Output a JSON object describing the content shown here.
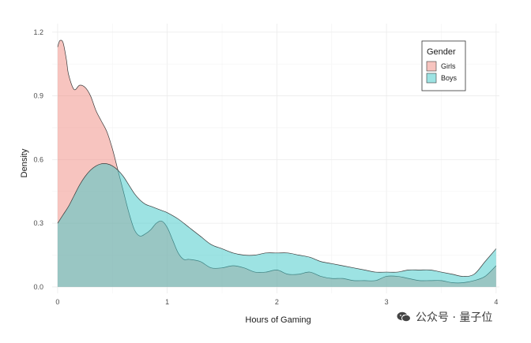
{
  "chart_data": {
    "type": "area",
    "xlabel": "Hours of Gaming",
    "ylabel": "Density",
    "xlim": [
      -0.05,
      4.03
    ],
    "ylim": [
      -0.03,
      1.24
    ],
    "x_ticks": [
      {
        "value": 0,
        "label": "0"
      },
      {
        "value": 1,
        "label": "1"
      },
      {
        "value": 2,
        "label": "2"
      },
      {
        "value": 3,
        "label": "3"
      },
      {
        "value": 4,
        "label": "4"
      }
    ],
    "y_ticks": [
      {
        "value": 0.0,
        "label": "0.0"
      },
      {
        "value": 0.3,
        "label": "0.3"
      },
      {
        "value": 0.6,
        "label": "0.6"
      },
      {
        "value": 0.9,
        "label": "0.9"
      },
      {
        "value": 1.2,
        "label": "1.2"
      }
    ],
    "grid": true,
    "legend": {
      "title": "Gender",
      "position": "top-right"
    },
    "series": [
      {
        "name": "Girls",
        "color": "#F08A80",
        "x": [
          0,
          0.02,
          0.05,
          0.08,
          0.1,
          0.15,
          0.2,
          0.25,
          0.3,
          0.35,
          0.4,
          0.45,
          0.5,
          0.55,
          0.6,
          0.65,
          0.7,
          0.75,
          0.8,
          0.85,
          0.9,
          0.95,
          1.0,
          1.05,
          1.1,
          1.15,
          1.2,
          1.3,
          1.4,
          1.5,
          1.6,
          1.7,
          1.8,
          1.9,
          2.0,
          2.1,
          2.2,
          2.3,
          2.4,
          2.5,
          2.6,
          2.7,
          2.8,
          2.9,
          3.0,
          3.1,
          3.2,
          3.3,
          3.4,
          3.5,
          3.6,
          3.7,
          3.8,
          3.9,
          4.0
        ],
        "y": [
          1.13,
          1.16,
          1.15,
          1.07,
          1.0,
          0.93,
          0.95,
          0.94,
          0.9,
          0.83,
          0.78,
          0.73,
          0.65,
          0.55,
          0.45,
          0.35,
          0.27,
          0.24,
          0.25,
          0.27,
          0.3,
          0.31,
          0.28,
          0.22,
          0.16,
          0.13,
          0.13,
          0.12,
          0.09,
          0.09,
          0.1,
          0.09,
          0.07,
          0.07,
          0.08,
          0.06,
          0.06,
          0.07,
          0.05,
          0.04,
          0.04,
          0.03,
          0.03,
          0.03,
          0.05,
          0.05,
          0.04,
          0.03,
          0.03,
          0.03,
          0.02,
          0.02,
          0.03,
          0.05,
          0.1
        ]
      },
      {
        "name": "Boys",
        "color": "#3CC8C8",
        "x": [
          0,
          0.05,
          0.1,
          0.15,
          0.2,
          0.25,
          0.3,
          0.35,
          0.4,
          0.45,
          0.5,
          0.55,
          0.6,
          0.65,
          0.7,
          0.75,
          0.8,
          0.85,
          0.9,
          0.95,
          1.0,
          1.1,
          1.2,
          1.3,
          1.4,
          1.5,
          1.6,
          1.7,
          1.8,
          1.9,
          2.0,
          2.1,
          2.2,
          2.3,
          2.4,
          2.5,
          2.6,
          2.7,
          2.8,
          2.9,
          3.0,
          3.1,
          3.2,
          3.3,
          3.4,
          3.5,
          3.6,
          3.7,
          3.8,
          3.9,
          4.0
        ],
        "y": [
          0.3,
          0.34,
          0.38,
          0.43,
          0.48,
          0.52,
          0.55,
          0.57,
          0.58,
          0.58,
          0.57,
          0.55,
          0.52,
          0.48,
          0.44,
          0.41,
          0.39,
          0.38,
          0.37,
          0.36,
          0.35,
          0.32,
          0.28,
          0.24,
          0.2,
          0.18,
          0.16,
          0.15,
          0.15,
          0.16,
          0.16,
          0.16,
          0.15,
          0.14,
          0.12,
          0.11,
          0.1,
          0.09,
          0.08,
          0.07,
          0.07,
          0.07,
          0.08,
          0.08,
          0.08,
          0.07,
          0.06,
          0.05,
          0.06,
          0.12,
          0.18
        ]
      }
    ]
  },
  "watermark": {
    "icon": "wechat-icon",
    "text": "公众号 · 量子位"
  }
}
